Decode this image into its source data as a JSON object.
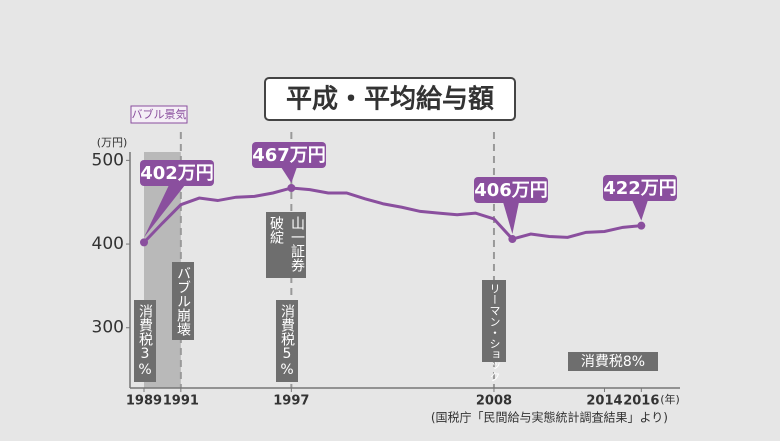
{
  "chart_data": {
    "type": "line",
    "title": "平成・平均給与額",
    "y_unit": "(万円)",
    "x_unit": "(年)",
    "source": "(国税庁「民間給与実態統計調査結果」より)",
    "x": [
      1989,
      1990,
      1991,
      1992,
      1993,
      1994,
      1995,
      1996,
      1997,
      1998,
      1999,
      2000,
      2001,
      2002,
      2003,
      2004,
      2005,
      2006,
      2007,
      2008,
      2009,
      2010,
      2011,
      2012,
      2013,
      2014,
      2015,
      2016
    ],
    "series": [
      {
        "name": "平均給与額",
        "color": "#8a4f9e",
        "values": [
          402,
          425,
          447,
          455,
          452,
          456,
          457,
          461,
          467,
          465,
          461,
          461,
          454,
          448,
          444,
          439,
          437,
          435,
          437,
          430,
          406,
          412,
          409,
          408,
          414,
          415,
          420,
          422
        ],
        "value_labels": [
          "402万円",
          null,
          null,
          null,
          null,
          null,
          null,
          null,
          "467万円",
          null,
          null,
          null,
          null,
          null,
          null,
          null,
          null,
          null,
          null,
          null,
          "406万円",
          null,
          null,
          null,
          null,
          null,
          null,
          "422万円"
        ]
      }
    ],
    "xlim": [
      1988.24,
      2018.1
    ],
    "xticks": [
      1989,
      1991,
      1997,
      2008,
      2014,
      2016
    ],
    "ylim": [
      228,
      510
    ],
    "yticks": [
      300,
      400,
      500
    ],
    "bubble_period": {
      "label": "バブル景気",
      "x": [
        1989,
        1991
      ]
    },
    "event_lines": [
      1991,
      1997,
      2008
    ],
    "events": [
      "消費税3%",
      "バブル崩壊",
      "山一証券",
      "破綻",
      "消費税5%",
      "リーマン・ショック",
      "消費税8%"
    ]
  }
}
